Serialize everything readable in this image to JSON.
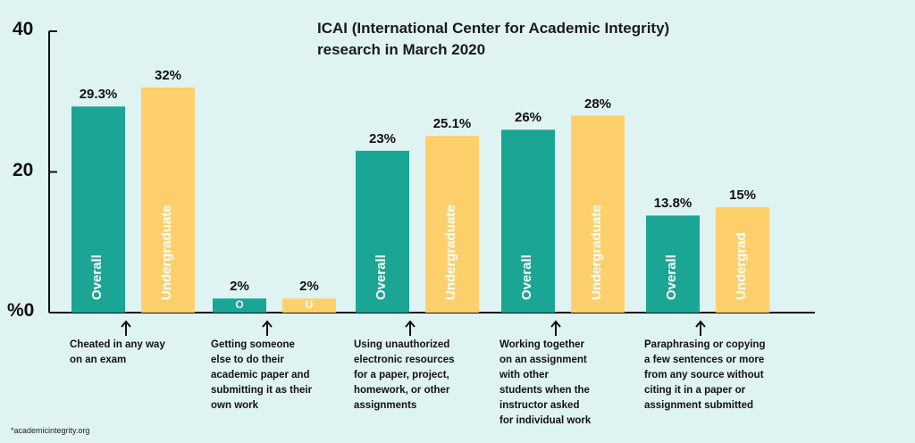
{
  "title_line1": "ICAI (International Center for Academic Integrity)",
  "title_line2": "research in March 2020",
  "source": "*academicintegrity.org",
  "colors": {
    "overall": "#1aa595",
    "undergraduate": "#fdd06c",
    "background": "#dff3f2",
    "axis": "#111111"
  },
  "chart_data": {
    "type": "bar",
    "ylim": [
      0,
      40
    ],
    "y_ticks": [
      "40",
      "20",
      "%0"
    ],
    "y_tick_values": [
      40,
      20,
      0
    ],
    "categories": [
      "Cheated in any way on an exam",
      "Getting someone else to do their academic paper and submitting it as their own work",
      "Using unauthorized electronic resources for a paper, project, homework, or other assignments",
      "Working together on an assignment with other students when the instructor asked for individual work",
      "Paraphrasing or copying a few sentences or more from any source without citing it in a paper or assignment submitted"
    ],
    "series": [
      {
        "name": "Overall",
        "values": [
          29.3,
          2,
          23,
          26,
          13.8
        ],
        "value_labels": [
          "29.3%",
          "2%",
          "23%",
          "26%",
          "13.8%"
        ],
        "bar_labels": [
          "Overall",
          "O",
          "Overall",
          "Overall",
          "Overall"
        ]
      },
      {
        "name": "Undergraduate",
        "values": [
          32,
          2,
          25.1,
          28,
          15
        ],
        "value_labels": [
          "32%",
          "2%",
          "25.1%",
          "28%",
          "15%"
        ],
        "bar_labels": [
          "Undergraduate",
          "U",
          "Undergraduate",
          "Undergraduate",
          "Undergrad"
        ]
      }
    ],
    "category_label_lines": [
      [
        "Cheated in any way",
        "on an exam"
      ],
      [
        "Getting someone",
        "else to do their",
        "academic paper and",
        "submitting it as their",
        "own work"
      ],
      [
        "Using unauthorized",
        "electronic resources",
        "for a paper, project,",
        "homework, or other",
        "assignments"
      ],
      [
        "Working together",
        "on an assignment",
        "with other",
        "students when the",
        "instructor asked",
        "for individual work"
      ],
      [
        "Paraphrasing or copying",
        "a few sentences or more",
        "from any source without",
        "citing it in a paper or",
        "assignment submitted"
      ]
    ]
  }
}
